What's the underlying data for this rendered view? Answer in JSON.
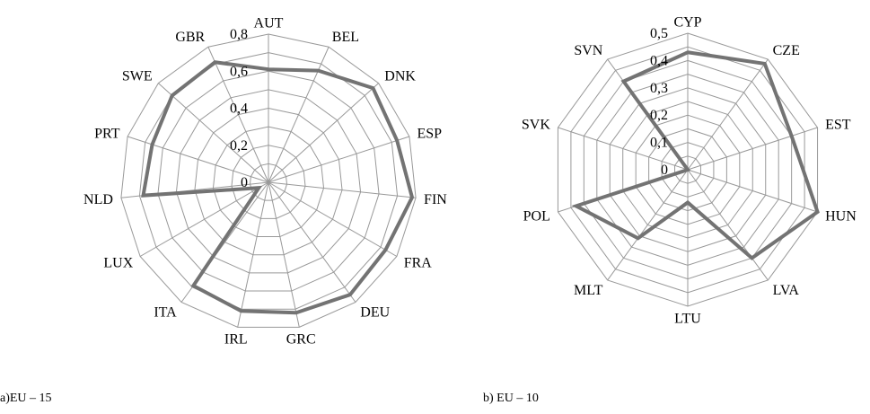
{
  "chart_data": [
    {
      "type": "radar",
      "title": "",
      "caption": "a)EU – 15",
      "categories": [
        "AUT",
        "BEL",
        "DNK",
        "ESP",
        "FIN",
        "FRA",
        "DEU",
        "GRC",
        "IRL",
        "ITA",
        "LUX",
        "NLD",
        "PRT",
        "SWE",
        "GBR"
      ],
      "values": [
        0.61,
        0.66,
        0.76,
        0.73,
        0.78,
        0.73,
        0.75,
        0.72,
        0.71,
        0.69,
        0.06,
        0.68,
        0.66,
        0.7,
        0.71
      ],
      "tick_labels": [
        "0",
        "0,2",
        "0,4",
        "0,6",
        "0,8"
      ],
      "rlim": [
        0,
        0.8
      ],
      "grid_rings": 8,
      "series_color": "#737373",
      "grid_color": "#999999"
    },
    {
      "type": "radar",
      "title": "",
      "caption": "b) EU – 10",
      "categories": [
        "CYP",
        "CZE",
        "EST",
        "HUN",
        "LVA",
        "LTU",
        "MLT",
        "POL",
        "SVK",
        "SVN"
      ],
      "values": [
        0.43,
        0.48,
        0.4,
        0.5,
        0.4,
        0.12,
        0.31,
        0.43,
        0.0,
        0.4
      ],
      "tick_labels": [
        "0",
        "0,1",
        "0,2",
        "0,3",
        "0,4",
        "0,5"
      ],
      "rlim": [
        0,
        0.5
      ],
      "grid_rings": 10,
      "series_color": "#737373",
      "grid_color": "#999999"
    }
  ]
}
